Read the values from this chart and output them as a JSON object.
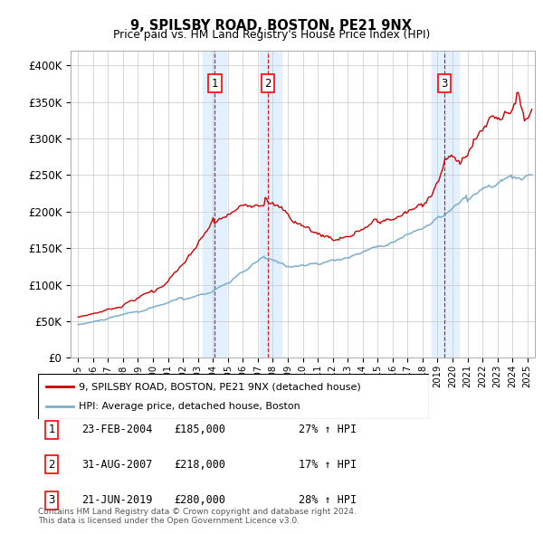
{
  "title": "9, SPILSBY ROAD, BOSTON, PE21 9NX",
  "subtitle": "Price paid vs. HM Land Registry's House Price Index (HPI)",
  "legend_line1": "9, SPILSBY ROAD, BOSTON, PE21 9NX (detached house)",
  "legend_line2": "HPI: Average price, detached house, Boston",
  "footnote1": "Contains HM Land Registry data © Crown copyright and database right 2024.",
  "footnote2": "This data is licensed under the Open Government Licence v3.0.",
  "transactions": [
    {
      "num": 1,
      "date": "23-FEB-2004",
      "price": 185000,
      "pct": "27%",
      "dir": "↑",
      "x_year": 2004.13
    },
    {
      "num": 2,
      "date": "31-AUG-2007",
      "price": 218000,
      "pct": "17%",
      "dir": "↑",
      "x_year": 2007.67
    },
    {
      "num": 3,
      "date": "21-JUN-2019",
      "price": 280000,
      "pct": "28%",
      "dir": "↑",
      "x_year": 2019.47
    }
  ],
  "ylim": [
    0,
    420000
  ],
  "yticks": [
    0,
    50000,
    100000,
    150000,
    200000,
    250000,
    300000,
    350000,
    400000
  ],
  "xlim": [
    1994.5,
    2025.5
  ],
  "background_color": "#ffffff",
  "plot_bg_color": "#ffffff",
  "grid_color": "#cccccc",
  "shade_color": "#ddeeff",
  "line_red": "#cc0000",
  "line_blue": "#7aaecc"
}
